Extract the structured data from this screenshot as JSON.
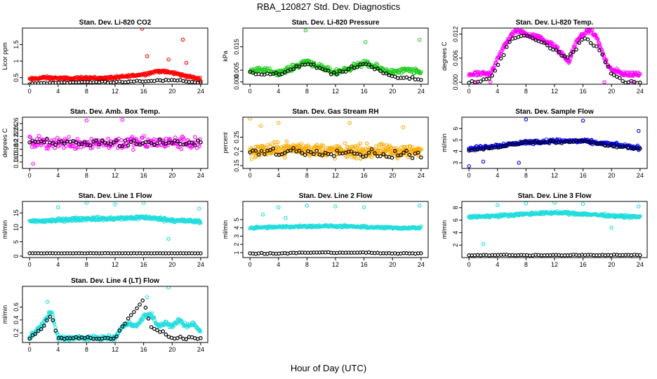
{
  "page": {
    "title": "RBA_120827  Std. Dev. Diagnostics",
    "xlabel": "Hour of Day (UTC)"
  },
  "chart_data": [
    {
      "type": "scatter",
      "title": "Stan. Dev. Li-820 CO2",
      "ylabel": "Licor ppm",
      "xlim": [
        -1,
        25
      ],
      "ylim": [
        0.3,
        2.0
      ],
      "xticks": [
        0,
        4,
        8,
        12,
        16,
        20,
        24
      ],
      "yticks": [
        0.5,
        1.0,
        1.5
      ],
      "point_color": "#ff0000",
      "overlay_color": "#000000",
      "noise": 0.06,
      "density": 4,
      "series": [
        {
          "x": [
            0,
            2,
            4,
            6,
            8,
            10,
            12,
            14,
            16,
            18,
            20,
            22,
            24
          ],
          "y": [
            0.45,
            0.5,
            0.48,
            0.47,
            0.5,
            0.48,
            0.5,
            0.55,
            0.6,
            0.7,
            0.65,
            0.55,
            0.45
          ]
        },
        {
          "x": [
            0,
            4,
            8,
            12,
            16,
            20,
            24
          ],
          "y": [
            0.32,
            0.35,
            0.36,
            0.37,
            0.4,
            0.42,
            0.35
          ]
        }
      ],
      "outliers": [
        [
          15.8,
          1.98
        ],
        [
          21.5,
          1.65
        ],
        [
          16.5,
          1.15
        ],
        [
          19.5,
          1.05
        ],
        [
          22,
          0.95
        ]
      ]
    },
    {
      "type": "scatter",
      "title": "Stan. Dev. Li-820 Pressure",
      "ylabel": "kPa",
      "xlim": [
        -1,
        25
      ],
      "ylim": [
        -0.001,
        0.023
      ],
      "xticks": [
        0,
        4,
        8,
        12,
        16,
        20,
        24
      ],
      "yticks": [
        0.0,
        0.005,
        0.015
      ],
      "point_color": "#22cc22",
      "overlay_color": "#000000",
      "noise": 0.0018,
      "density": 4,
      "series": [
        {
          "x": [
            0,
            2,
            4,
            6,
            8,
            10,
            12,
            14,
            16,
            18,
            20,
            22,
            24
          ],
          "y": [
            0.005,
            0.005,
            0.004,
            0.006,
            0.009,
            0.006,
            0.004,
            0.006,
            0.008,
            0.006,
            0.004,
            0.005,
            0.004
          ]
        },
        {
          "x": [
            0,
            4,
            8,
            12,
            16,
            20,
            24
          ],
          "y": [
            0.004,
            0.003,
            0.008,
            0.003,
            0.008,
            0.002,
            0.001
          ]
        }
      ],
      "outliers": [
        [
          7.8,
          0.022
        ],
        [
          16.2,
          0.017
        ],
        [
          23.8,
          0.018
        ]
      ]
    },
    {
      "type": "scatter",
      "title": "Stan. Dev. Li-820 Temp.",
      "ylabel": "degrees C",
      "xlim": [
        -1,
        25
      ],
      "ylim": [
        -0.0005,
        0.0135
      ],
      "xticks": [
        0,
        4,
        8,
        12,
        16,
        20,
        24
      ],
      "yticks": [
        0.0,
        0.006,
        0.012
      ],
      "point_color": "#ff00ff",
      "overlay_color": "#000000",
      "noise": 0.0009,
      "density": 4,
      "series": [
        {
          "x": [
            0,
            2,
            3,
            4,
            5,
            6,
            7,
            8,
            10,
            12,
            13,
            14,
            15,
            16,
            17,
            18,
            19,
            20,
            22,
            24
          ],
          "y": [
            0.002,
            0.002,
            0.002,
            0.006,
            0.009,
            0.012,
            0.013,
            0.012,
            0.011,
            0.009,
            0.007,
            0.005,
            0.01,
            0.012,
            0.013,
            0.011,
            0.006,
            0.003,
            0.002,
            0.002
          ]
        },
        {
          "x": [
            0,
            3,
            4,
            6,
            8,
            10,
            12,
            14,
            16,
            18,
            20,
            22,
            24
          ],
          "y": [
            0.0,
            0.001,
            0.004,
            0.011,
            0.012,
            0.01,
            0.008,
            0.006,
            0.011,
            0.009,
            0.002,
            0.0,
            0.0
          ]
        }
      ],
      "outliers": [
        [
          1,
          0.0
        ],
        [
          3,
          0.0
        ],
        [
          19,
          0.0
        ],
        [
          23,
          0.0
        ]
      ]
    },
    {
      "type": "scatter",
      "title": "Stan. Dev. Amb. Box Temp.",
      "ylabel": "degrees C",
      "xlim": [
        -1,
        25
      ],
      "ylim": [
        0.12,
        0.28
      ],
      "xticks": [
        0,
        4,
        8,
        12,
        16,
        20,
        24
      ],
      "yticks": [
        0.14,
        0.16,
        0.18,
        0.2,
        0.22,
        0.24,
        0.26
      ],
      "point_color": "#ff00ff",
      "overlay_color": "#000000",
      "noise": 0.03,
      "density": 3,
      "series": [
        {
          "x": [
            0,
            6,
            12,
            18,
            24
          ],
          "y": [
            0.2,
            0.2,
            0.2,
            0.2,
            0.2
          ]
        },
        {
          "x": [
            0,
            6,
            12,
            18,
            24
          ],
          "y": [
            0.2,
            0.2,
            0.2,
            0.2,
            0.2
          ]
        }
      ],
      "outliers": [
        [
          0.5,
          0.135
        ],
        [
          13,
          0.272
        ],
        [
          8,
          0.27
        ]
      ]
    },
    {
      "type": "scatter",
      "title": "Stan. Dev. Gas Stream RH",
      "ylabel": "percent",
      "xlim": [
        -1,
        25
      ],
      "ylim": [
        0.14,
        0.32
      ],
      "xticks": [
        0,
        4,
        8,
        12,
        16,
        20,
        24
      ],
      "yticks": [
        0.15,
        0.2,
        0.25
      ],
      "point_color": "#ffaa00",
      "overlay_color": "#000000",
      "noise": 0.035,
      "density": 5,
      "series": [
        {
          "x": [
            0,
            6,
            12,
            18,
            24
          ],
          "y": [
            0.2,
            0.21,
            0.2,
            0.2,
            0.2
          ]
        },
        {
          "x": [
            0,
            6,
            12,
            18,
            24
          ],
          "y": [
            0.2,
            0.2,
            0.2,
            0.19,
            0.19
          ]
        }
      ],
      "outliers": [
        [
          0,
          0.315
        ],
        [
          1.5,
          0.29
        ],
        [
          4,
          0.3
        ],
        [
          14,
          0.3
        ],
        [
          21.5,
          0.285
        ]
      ]
    },
    {
      "type": "scatter",
      "title": "Stan. Dev. Sample Flow",
      "ylabel": "ml/min",
      "xlim": [
        -1,
        25
      ],
      "ylim": [
        2.5,
        7.0
      ],
      "xticks": [
        0,
        4,
        8,
        12,
        16,
        20,
        24
      ],
      "yticks": [
        3,
        4,
        5,
        6
      ],
      "point_color": "#0000dd",
      "overlay_color": "#000000",
      "noise": 0.25,
      "density": 4,
      "series": [
        {
          "x": [
            0,
            4,
            8,
            12,
            16,
            20,
            24
          ],
          "y": [
            4.2,
            4.5,
            4.8,
            4.9,
            4.9,
            4.6,
            4.3
          ]
        },
        {
          "x": [
            0,
            4,
            8,
            12,
            16,
            20,
            24
          ],
          "y": [
            4.1,
            4.4,
            4.8,
            4.8,
            4.9,
            4.5,
            4.2
          ]
        }
      ],
      "outliers": [
        [
          0,
          2.7
        ],
        [
          8,
          6.8
        ],
        [
          16,
          6.7
        ],
        [
          23.8,
          5.8
        ],
        [
          7,
          3.0
        ],
        [
          2,
          3.1
        ]
      ]
    },
    {
      "type": "scatter",
      "title": "Stan. Dev. Line 1 Flow",
      "ylabel": "ml/min",
      "xlim": [
        -1,
        25
      ],
      "ylim": [
        -0.5,
        19
      ],
      "xticks": [
        0,
        4,
        8,
        12,
        16,
        20,
        24
      ],
      "yticks": [
        0,
        5,
        10,
        15
      ],
      "point_color": "#22dddd",
      "overlay_color": "#000000",
      "noise": 0.9,
      "density": 5,
      "series": [
        {
          "x": [
            0,
            4,
            8,
            12,
            16,
            20,
            24
          ],
          "y": [
            12,
            12.5,
            13,
            13,
            13.5,
            12.5,
            12
          ]
        },
        {
          "x": [
            0,
            4,
            8,
            12,
            16,
            20,
            24
          ],
          "y": [
            1.0,
            1.0,
            1.0,
            1.0,
            1.0,
            1.0,
            1.0
          ]
        }
      ],
      "overlay_noise": 0.05,
      "outliers": [
        [
          4,
          17
        ],
        [
          8,
          18.5
        ],
        [
          12,
          18
        ],
        [
          16,
          18.5
        ],
        [
          19.5,
          6
        ],
        [
          23.8,
          16.5
        ]
      ]
    },
    {
      "type": "scatter",
      "title": "Stan. Dev. Line 2 Flow",
      "ylabel": "ml/min",
      "xlim": [
        -1,
        25
      ],
      "ylim": [
        0.4,
        7.2
      ],
      "xticks": [
        0,
        4,
        8,
        12,
        16,
        20,
        24
      ],
      "yticks": [
        1,
        2,
        3,
        4,
        5
      ],
      "point_color": "#22dddd",
      "overlay_color": "#000000",
      "noise": 0.2,
      "density": 4,
      "series": [
        {
          "x": [
            0,
            4,
            8,
            12,
            16,
            20,
            24
          ],
          "y": [
            4.0,
            4.1,
            4.2,
            4.2,
            4.1,
            4.0,
            4.0
          ]
        },
        {
          "x": [
            0,
            4,
            8,
            12,
            16,
            20,
            24
          ],
          "y": [
            0.9,
            0.9,
            1.0,
            1.0,
            1.0,
            0.9,
            0.9
          ]
        }
      ],
      "overlay_noise": 0.08,
      "outliers": [
        [
          4,
          6.5
        ],
        [
          8,
          6.7
        ],
        [
          12,
          6.6
        ],
        [
          16,
          6.5
        ],
        [
          23.8,
          6.7
        ],
        [
          1.8,
          5.6
        ],
        [
          5,
          5.2
        ]
      ]
    },
    {
      "type": "scatter",
      "title": "Stan. Dev. Line 3 Flow",
      "ylabel": "ml/min",
      "xlim": [
        -1,
        25
      ],
      "ylim": [
        0,
        9
      ],
      "xticks": [
        0,
        4,
        8,
        12,
        16,
        20,
        24
      ],
      "yticks": [
        2,
        4,
        6,
        8
      ],
      "point_color": "#22dddd",
      "overlay_color": "#000000",
      "noise": 0.3,
      "density": 5,
      "series": [
        {
          "x": [
            0,
            4,
            8,
            12,
            16,
            20,
            24
          ],
          "y": [
            6.5,
            6.7,
            7.0,
            7.2,
            7.0,
            6.7,
            6.5
          ]
        },
        {
          "x": [
            0,
            4,
            8,
            12,
            16,
            20,
            24
          ],
          "y": [
            0.4,
            0.4,
            0.4,
            0.4,
            0.4,
            0.4,
            0.4
          ]
        }
      ],
      "overlay_noise": 0.1,
      "outliers": [
        [
          2,
          2.2
        ],
        [
          4,
          8.4
        ],
        [
          8,
          8.7
        ],
        [
          12,
          8.8
        ],
        [
          16,
          8.6
        ],
        [
          20,
          4.8
        ],
        [
          23.8,
          8.2
        ]
      ]
    },
    {
      "type": "scatter",
      "title": "Stan. Dev. Line 4 (LT) Flow",
      "ylabel": "ml/min",
      "xlim": [
        -1,
        25
      ],
      "ylim": [
        0.05,
        0.92
      ],
      "xticks": [
        0,
        4,
        8,
        12,
        16,
        20,
        24
      ],
      "yticks": [
        0.2,
        0.4,
        0.6
      ],
      "point_color": "#22dddd",
      "overlay_color": "#000000",
      "noise": 0.05,
      "density": 4,
      "series": [
        {
          "x": [
            0,
            1,
            2,
            3,
            4,
            6,
            8,
            10,
            12,
            13,
            14,
            15,
            16,
            17,
            18,
            19,
            20,
            21,
            22,
            23,
            24
          ],
          "y": [
            0.12,
            0.25,
            0.35,
            0.55,
            0.12,
            0.12,
            0.12,
            0.12,
            0.12,
            0.3,
            0.35,
            0.3,
            0.45,
            0.5,
            0.3,
            0.35,
            0.3,
            0.4,
            0.3,
            0.35,
            0.2
          ]
        },
        {
          "x": [
            0,
            2,
            3,
            4,
            8,
            12,
            13,
            16,
            17,
            20,
            24
          ],
          "y": [
            0.12,
            0.3,
            0.5,
            0.12,
            0.12,
            0.12,
            0.3,
            0.7,
            0.3,
            0.12,
            0.12
          ]
        }
      ],
      "outliers": [
        [
          16.5,
          0.75
        ],
        [
          19.5,
          0.9
        ],
        [
          2.5,
          0.68
        ]
      ]
    }
  ]
}
